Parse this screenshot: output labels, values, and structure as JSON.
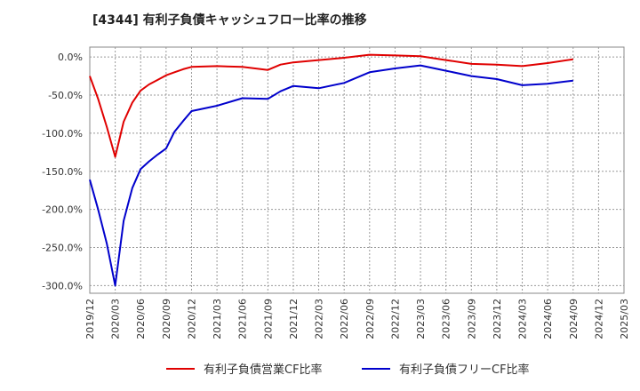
{
  "chart_data": {
    "type": "line",
    "title": "[4344]  有利子負債キャッシュフロー比率の推移",
    "xlabel": "",
    "ylabel": "",
    "ylim": [
      -310,
      13
    ],
    "yticks": [
      0,
      -50,
      -100,
      -150,
      -200,
      -250,
      -300
    ],
    "ytick_labels": [
      "0.0%",
      "-50.0%",
      "-100.0%",
      "-150.0%",
      "-200.0%",
      "-250.0%",
      "-300.0%"
    ],
    "x_tick_labels": [
      "2019/12",
      "2020/03",
      "2020/06",
      "2020/09",
      "2020/12",
      "2021/03",
      "2021/06",
      "2021/09",
      "2021/12",
      "2022/03",
      "2022/06",
      "2022/09",
      "2022/12",
      "2023/03",
      "2023/06",
      "2023/09",
      "2023/12",
      "2024/03",
      "2024/06",
      "2024/09",
      "2024/12",
      "2025/03"
    ],
    "grid": true,
    "legend_position": "bottom",
    "series": [
      {
        "name": "有利子負債営業CF比率",
        "color": "#e00000",
        "points": [
          [
            0,
            -25
          ],
          [
            0.33,
            -55
          ],
          [
            0.67,
            -92
          ],
          [
            1,
            -131
          ],
          [
            1.33,
            -85
          ],
          [
            1.67,
            -60
          ],
          [
            2,
            -44
          ],
          [
            2.33,
            -36
          ],
          [
            2.67,
            -30
          ],
          [
            3,
            -24
          ],
          [
            3.33,
            -20
          ],
          [
            3.67,
            -16
          ],
          [
            4,
            -13
          ],
          [
            5,
            -12
          ],
          [
            6,
            -13
          ],
          [
            7,
            -17
          ],
          [
            7.5,
            -10
          ],
          [
            8,
            -7
          ],
          [
            9,
            -4
          ],
          [
            10,
            -1
          ],
          [
            11,
            3
          ],
          [
            12,
            2
          ],
          [
            13,
            1
          ],
          [
            14,
            -4
          ],
          [
            15,
            -9
          ],
          [
            16,
            -10
          ],
          [
            17,
            -12
          ],
          [
            18,
            -8
          ],
          [
            19,
            -3
          ]
        ]
      },
      {
        "name": "有利子負債フリーCF比率",
        "color": "#0000cc",
        "points": [
          [
            0,
            -161
          ],
          [
            0.33,
            -200
          ],
          [
            0.67,
            -245
          ],
          [
            1,
            -300
          ],
          [
            1.33,
            -215
          ],
          [
            1.67,
            -172
          ],
          [
            2,
            -147
          ],
          [
            2.33,
            -137
          ],
          [
            2.67,
            -128
          ],
          [
            3,
            -120
          ],
          [
            3.33,
            -98
          ],
          [
            3.67,
            -84
          ],
          [
            4,
            -71
          ],
          [
            5,
            -64
          ],
          [
            6,
            -54
          ],
          [
            7,
            -55
          ],
          [
            7.5,
            -45
          ],
          [
            8,
            -38
          ],
          [
            9,
            -41
          ],
          [
            10,
            -34
          ],
          [
            11,
            -20
          ],
          [
            12,
            -15
          ],
          [
            13,
            -11
          ],
          [
            14,
            -18
          ],
          [
            15,
            -25
          ],
          [
            16,
            -29
          ],
          [
            17,
            -37
          ],
          [
            18,
            -35
          ],
          [
            19,
            -31
          ]
        ]
      }
    ]
  }
}
